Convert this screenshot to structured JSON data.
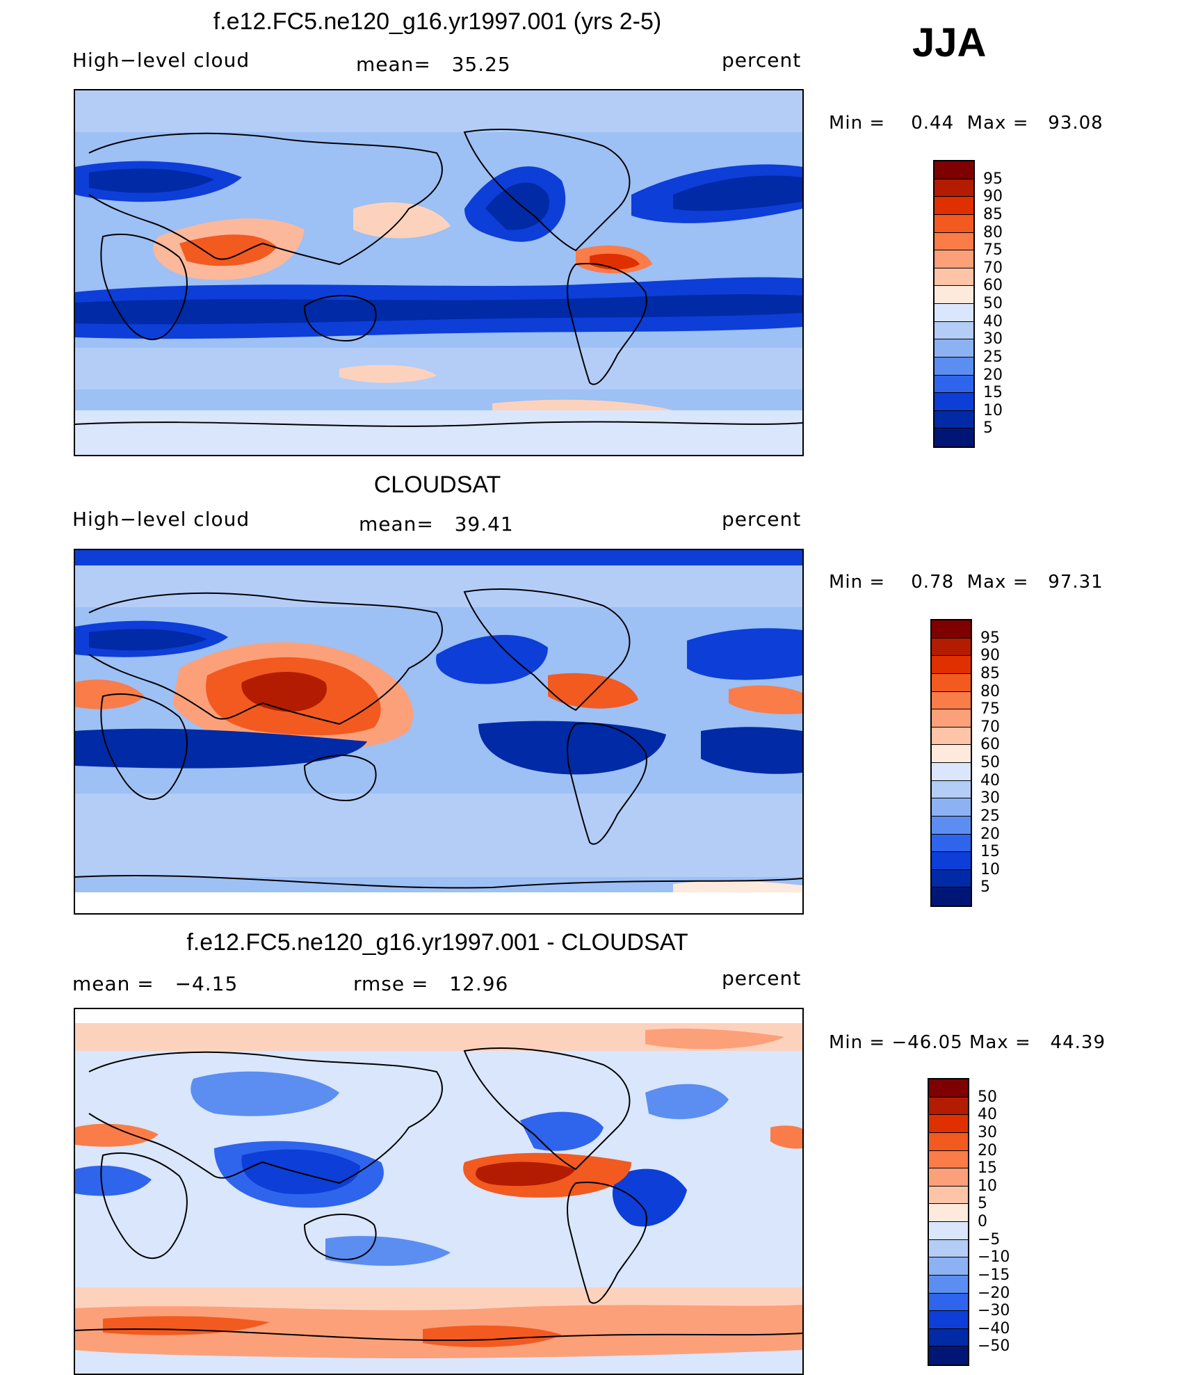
{
  "season": "JJA",
  "panels": [
    {
      "title": "f.e12.FC5.ne120_g16.yr1997.001 (yrs 2-5)",
      "left_label": "High−level cloud",
      "stat_label": "mean=",
      "stat_value": "35.25",
      "units": "percent",
      "min_label": "Min  =",
      "min_value": "0.44",
      "max_label": "Max  =",
      "max_value": "93.08",
      "levels": [
        "95",
        "90",
        "85",
        "80",
        "75",
        "70",
        "60",
        "50",
        "40",
        "30",
        "25",
        "20",
        "15",
        "10",
        "5"
      ]
    },
    {
      "title": "CLOUDSAT",
      "left_label": "High−level cloud",
      "stat_label": "mean=",
      "stat_value": "39.41",
      "units": "percent",
      "min_label": "Min  =",
      "min_value": "0.78",
      "max_label": "Max  =",
      "max_value": "97.31",
      "levels": [
        "95",
        "90",
        "85",
        "80",
        "75",
        "70",
        "60",
        "50",
        "40",
        "30",
        "25",
        "20",
        "15",
        "10",
        "5"
      ]
    },
    {
      "title": "f.e12.FC5.ne120_g16.yr1997.001 - CLOUDSAT",
      "left_label": "mean  =",
      "left_value": "−4.15",
      "stat_label": "rmse  =",
      "stat_value": "12.96",
      "units": "percent",
      "min_label": "Min  =",
      "min_value": "−46.05",
      "max_label": "Max  =",
      "max_value": "44.39",
      "levels": [
        "50",
        "40",
        "30",
        "20",
        "15",
        "10",
        "5",
        "0",
        "−5",
        "−10",
        "−15",
        "−20",
        "−30",
        "−40",
        "−50"
      ]
    }
  ],
  "colors": {
    "scale": [
      "#7f0000",
      "#b31c00",
      "#e03000",
      "#f25a20",
      "#fa7c48",
      "#fca07a",
      "#fdc4a8",
      "#feeadd",
      "#d9e6fb",
      "#b4cdf7",
      "#8cb2f3",
      "#5b8ef0",
      "#2f64ec",
      "#0d3ed8",
      "#002aa6",
      "#001677"
    ]
  }
}
